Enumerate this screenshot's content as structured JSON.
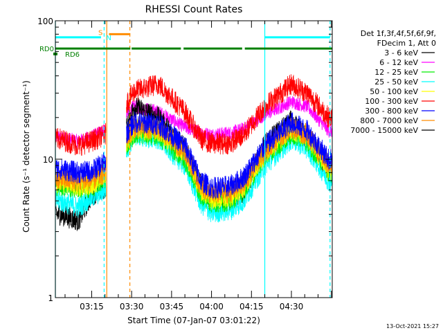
{
  "chart_data": {
    "type": "line",
    "title": "RHESSI Count Rates",
    "xlabel": "Start Time (07-Jan-07 03:01:22)",
    "ylabel": "Count Rate (s⁻¹ detector segment⁻¹)",
    "yscale": "log",
    "ylim": [
      1,
      100
    ],
    "xlim": [
      "03:01:22",
      "04:45:20"
    ],
    "x_ticks": [
      "03:15",
      "03:30",
      "03:45",
      "04:00",
      "04:15",
      "04:30"
    ],
    "y_ticks": [
      "1",
      "10",
      "100"
    ],
    "legend_header": [
      "Det 1f,3f,4f,5f,6f,9f,",
      "FDecim 1, Att 0"
    ],
    "legend_position": "right",
    "footer_date": "13-Oct-2021 15:27",
    "series": [
      {
        "name": "3 - 6 keV",
        "color": "#000000",
        "y": [
          4.0,
          3.6,
          5.5,
          6.2,
          24,
          20,
          12,
          6.5,
          4.9,
          5.0,
          5.5,
          13,
          19,
          14,
          8.5
        ]
      },
      {
        "name": "6 - 12 keV",
        "color": "#ff00ff",
        "y": [
          14.5,
          13.5,
          14.5,
          16.5,
          24,
          22,
          17,
          15.5,
          15.0,
          15.5,
          16.5,
          21,
          26,
          24,
          16
        ]
      },
      {
        "name": "12 - 25 keV",
        "color": "#00ee00",
        "y": [
          6.5,
          6.2,
          6.3,
          7.3,
          15.5,
          15.0,
          10,
          5.6,
          4.9,
          5.0,
          6.0,
          10.5,
          15.5,
          13.5,
          8.0
        ]
      },
      {
        "name": "25 - 50 keV",
        "color": "#00ffff",
        "y": [
          5.0,
          4.5,
          5.3,
          6.0,
          15.0,
          14.0,
          9.0,
          4.8,
          4.1,
          4.3,
          5.0,
          9.0,
          14.0,
          12.0,
          7.0
        ]
      },
      {
        "name": "50 - 100 keV",
        "color": "#ffff00",
        "y": [
          6.8,
          6.5,
          6.6,
          7.6,
          16.5,
          16.0,
          11,
          6.0,
          5.2,
          5.4,
          6.3,
          11,
          16.5,
          14.5,
          8.5
        ]
      },
      {
        "name": "100 - 300 keV",
        "color": "#ff0000",
        "y": [
          14.0,
          12.5,
          13.5,
          15.0,
          31,
          35,
          22,
          14.0,
          13.0,
          13.0,
          15.0,
          24,
          35,
          30,
          20
        ]
      },
      {
        "name": "300 - 800 keV",
        "color": "#0000ff",
        "y": [
          8.5,
          8.0,
          8.2,
          9.5,
          18.5,
          18.0,
          12.5,
          7.0,
          6.2,
          6.4,
          7.4,
          12.5,
          18.5,
          16.0,
          10
        ]
      },
      {
        "name": "800 - 7000 keV",
        "color": "#ff8c00",
        "y": [
          7.2,
          6.9,
          7.0,
          8.0,
          17.0,
          16.5,
          11.5,
          6.4,
          5.6,
          5.8,
          6.7,
          11.5,
          17.0,
          15.0,
          9.0
        ]
      },
      {
        "name": "7000 - 15000 keV",
        "color": "#000000",
        "y": null
      }
    ],
    "x_profile": [
      "03:03",
      "03:10",
      "03:15",
      "03:20",
      "03:31",
      "03:40",
      "03:50",
      "03:56",
      "04:00",
      "04:07",
      "04:12",
      "04:20",
      "04:30",
      "04:36",
      "04:44"
    ],
    "gap": [
      "03:20:20",
      "03:28:00"
    ],
    "flag_bars": [
      {
        "label": "RD0",
        "color": "#008000",
        "y": 63,
        "segments": [
          [
            "03:01:22",
            "03:29:30"
          ],
          [
            "03:30:00",
            "03:48:30"
          ],
          [
            "03:49:30",
            "04:11:30"
          ],
          [
            "04:12:30",
            "04:45:20"
          ]
        ]
      },
      {
        "label": "RD6",
        "color": "#008000",
        "y": 61,
        "segments": []
      },
      {
        "label": "S",
        "color": "#ff8c00",
        "y": 80,
        "segments": [
          [
            "03:21:30",
            "03:29:30"
          ]
        ]
      },
      {
        "label": "N",
        "color": "#00ffff",
        "y": 76,
        "segments": [
          [
            "03:01:22",
            "03:18:30"
          ],
          [
            "04:20:00",
            "04:44:30"
          ]
        ]
      }
    ],
    "vertical_lines": [
      {
        "time": "03:01:22",
        "color": "#00ffff",
        "style": "solid"
      },
      {
        "time": "03:19:40",
        "color": "#00ffff",
        "style": "dashed"
      },
      {
        "time": "03:20:40",
        "color": "#ff8c00",
        "style": "solid"
      },
      {
        "time": "03:29:20",
        "color": "#ff8c00",
        "style": "dashed"
      },
      {
        "time": "04:20:00",
        "color": "#00ffff",
        "style": "solid"
      },
      {
        "time": "04:44:30",
        "color": "#00ffff",
        "style": "dashed"
      }
    ],
    "grid": false
  }
}
